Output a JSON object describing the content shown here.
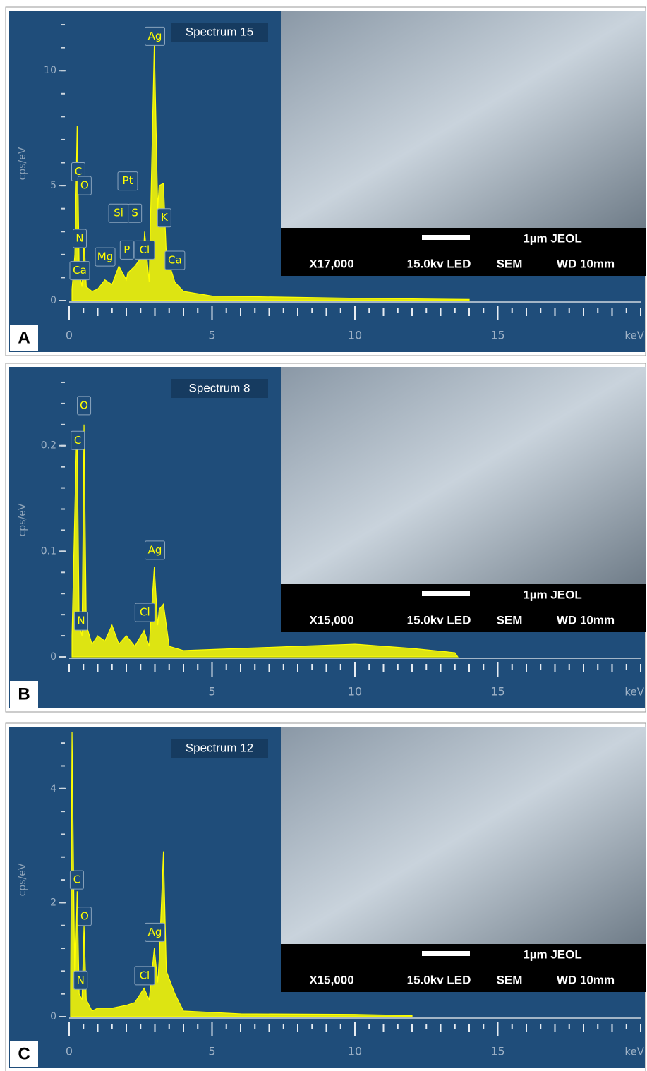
{
  "chart_data": [
    {
      "type": "line",
      "panel": "A",
      "title": "Spectrum 15",
      "ylabel": "cps/eV",
      "xlabel": "keV",
      "color": "#ffff00",
      "xlim": [
        0,
        20
      ],
      "ylim": [
        0,
        12.4
      ],
      "xticks": [
        0,
        5,
        10,
        15
      ],
      "yticks": [
        0,
        5,
        10
      ],
      "x": [
        0.1,
        0.2,
        0.28,
        0.35,
        0.39,
        0.45,
        0.52,
        0.6,
        0.8,
        1.0,
        1.25,
        1.5,
        1.74,
        2.0,
        2.05,
        2.3,
        2.6,
        2.64,
        2.8,
        2.98,
        3.1,
        3.15,
        3.3,
        3.4,
        3.6,
        3.7,
        4.0,
        5,
        10,
        14
      ],
      "values": [
        0.5,
        2,
        7.6,
        1.5,
        1.0,
        0.6,
        2.8,
        0.6,
        0.4,
        0.5,
        0.9,
        0.7,
        1.5,
        0.9,
        1.2,
        1.5,
        2.0,
        3.0,
        0.8,
        11.2,
        4.0,
        5.0,
        5.1,
        2.0,
        1.2,
        0.8,
        0.4,
        0.2,
        0.1,
        0.05
      ],
      "annotations": [
        {
          "text": "C",
          "x": 0.32,
          "y": 5.6
        },
        {
          "text": "O",
          "x": 0.54,
          "y": 5.0
        },
        {
          "text": "N",
          "x": 0.37,
          "y": 2.7
        },
        {
          "text": "Ca",
          "x": 0.37,
          "y": 1.3
        },
        {
          "text": "Mg",
          "x": 1.26,
          "y": 1.9
        },
        {
          "text": "Si",
          "x": 1.73,
          "y": 3.8
        },
        {
          "text": "P",
          "x": 2.02,
          "y": 2.2
        },
        {
          "text": "S",
          "x": 2.3,
          "y": 3.8
        },
        {
          "text": "Pt",
          "x": 2.05,
          "y": 5.2
        },
        {
          "text": "Cl",
          "x": 2.64,
          "y": 2.2
        },
        {
          "text": "K",
          "x": 3.33,
          "y": 3.6
        },
        {
          "text": "Ca",
          "x": 3.7,
          "y": 1.75
        },
        {
          "text": "Ag",
          "x": 3.0,
          "y": 11.5
        }
      ],
      "sem_labels": [
        "1µm   JEOL",
        "X17,000",
        "15.0kv LED",
        "SEM",
        "WD 10mm"
      ]
    },
    {
      "type": "line",
      "panel": "B",
      "title": "Spectrum 8",
      "ylabel": "cps/eV",
      "xlabel": "keV",
      "color": "#ffff00",
      "xlim": [
        0,
        20
      ],
      "ylim": [
        0,
        0.27
      ],
      "xticks": [
        5,
        10,
        15
      ],
      "yticks": [
        0,
        0.1,
        0.2
      ],
      "x": [
        0.1,
        0.25,
        0.28,
        0.35,
        0.45,
        0.52,
        0.6,
        0.8,
        1.0,
        1.25,
        1.5,
        1.74,
        2.0,
        2.3,
        2.62,
        2.8,
        2.98,
        3.1,
        3.15,
        3.3,
        3.5,
        4,
        6,
        8,
        10,
        12,
        13.5,
        13.6
      ],
      "values": [
        0.02,
        0.2,
        0.21,
        0.03,
        0.02,
        0.22,
        0.03,
        0.012,
        0.02,
        0.015,
        0.03,
        0.012,
        0.02,
        0.01,
        0.025,
        0.01,
        0.085,
        0.03,
        0.045,
        0.05,
        0.01,
        0.006,
        0.008,
        0.01,
        0.012,
        0.008,
        0.004,
        0
      ],
      "annotations": [
        {
          "text": "O",
          "x": 0.52,
          "y": 0.238
        },
        {
          "text": "C",
          "x": 0.3,
          "y": 0.205
        },
        {
          "text": "N",
          "x": 0.42,
          "y": 0.034
        },
        {
          "text": "Cl",
          "x": 2.65,
          "y": 0.042
        },
        {
          "text": "Ag",
          "x": 3.0,
          "y": 0.101
        }
      ],
      "sem_labels": [
        "1µm   JEOL",
        "X15,000",
        "15.0kv LED",
        "SEM",
        "WD 10mm"
      ]
    },
    {
      "type": "line",
      "panel": "C",
      "title": "Spectrum 12",
      "ylabel": "cps/eV",
      "xlabel": "keV",
      "color": "#ffff00",
      "xlim": [
        0,
        20
      ],
      "ylim": [
        0,
        5
      ],
      "xticks": [
        0,
        5,
        10,
        15
      ],
      "yticks": [
        0,
        2,
        4
      ],
      "x": [
        0.05,
        0.1,
        0.2,
        0.28,
        0.35,
        0.45,
        0.52,
        0.6,
        0.8,
        1.0,
        1.5,
        2.0,
        2.3,
        2.62,
        2.8,
        2.98,
        3.1,
        3.15,
        3.3,
        3.4,
        3.7,
        4.0,
        6,
        10,
        12
      ],
      "values": [
        0.5,
        5.0,
        0.5,
        2.2,
        0.4,
        0.3,
        1.6,
        0.3,
        0.1,
        0.15,
        0.15,
        0.2,
        0.25,
        0.5,
        0.3,
        1.2,
        0.6,
        1.0,
        2.9,
        0.8,
        0.4,
        0.1,
        0.05,
        0.04,
        0.02
      ],
      "annotations": [
        {
          "text": "C",
          "x": 0.27,
          "y": 2.4
        },
        {
          "text": "O",
          "x": 0.54,
          "y": 1.76
        },
        {
          "text": "N",
          "x": 0.4,
          "y": 0.64
        },
        {
          "text": "Cl",
          "x": 2.64,
          "y": 0.72
        },
        {
          "text": "Ag",
          "x": 3.0,
          "y": 1.48
        }
      ],
      "sem_labels": [
        "1µm   JEOL",
        "X15,000",
        "15.0kv LED",
        "SEM",
        "WD 10mm"
      ]
    }
  ]
}
